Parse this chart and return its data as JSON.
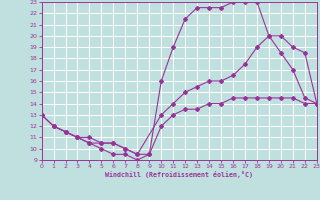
{
  "xlabel": "Windchill (Refroidissement éolien,°C)",
  "xlim": [
    0,
    23
  ],
  "ylim": [
    9,
    23
  ],
  "xticks": [
    0,
    1,
    2,
    3,
    4,
    5,
    6,
    7,
    8,
    9,
    10,
    11,
    12,
    13,
    14,
    15,
    16,
    17,
    18,
    19,
    20,
    21,
    22,
    23
  ],
  "yticks": [
    9,
    10,
    11,
    12,
    13,
    14,
    15,
    16,
    17,
    18,
    19,
    20,
    21,
    22,
    23
  ],
  "bg_color": "#c0e0e0",
  "line_color": "#993399",
  "grid_color": "#ffffff",
  "line1_x": [
    0,
    1,
    2,
    3,
    4,
    5,
    6,
    7,
    8,
    9,
    10,
    11,
    12,
    13,
    14,
    15,
    16,
    17,
    18,
    19,
    20,
    21,
    22,
    23
  ],
  "line1_y": [
    13,
    12,
    11.5,
    11,
    10.5,
    10,
    9.5,
    9.5,
    9,
    9.5,
    16,
    19,
    21.5,
    22.5,
    22.5,
    22.5,
    23,
    23,
    23,
    20,
    18.5,
    17,
    14.5,
    14
  ],
  "line2_x": [
    0,
    1,
    2,
    3,
    4,
    5,
    6,
    7,
    8,
    10,
    11,
    12,
    13,
    14,
    15,
    16,
    17,
    18,
    19,
    20,
    21,
    22,
    23
  ],
  "line2_y": [
    13,
    12,
    11.5,
    11,
    11,
    10.5,
    10.5,
    10,
    9.5,
    13,
    14,
    15,
    15.5,
    16,
    16,
    16.5,
    17.5,
    19,
    20,
    20,
    19,
    18.5,
    14
  ],
  "line3_x": [
    1,
    2,
    3,
    4,
    5,
    6,
    7,
    8,
    9,
    10,
    11,
    12,
    13,
    14,
    15,
    16,
    17,
    18,
    19,
    20,
    21,
    22,
    23
  ],
  "line3_y": [
    12,
    11.5,
    11,
    10.5,
    10.5,
    10.5,
    10,
    9.5,
    9.5,
    12,
    13,
    13.5,
    13.5,
    14,
    14,
    14.5,
    14.5,
    14.5,
    14.5,
    14.5,
    14.5,
    14,
    14
  ]
}
